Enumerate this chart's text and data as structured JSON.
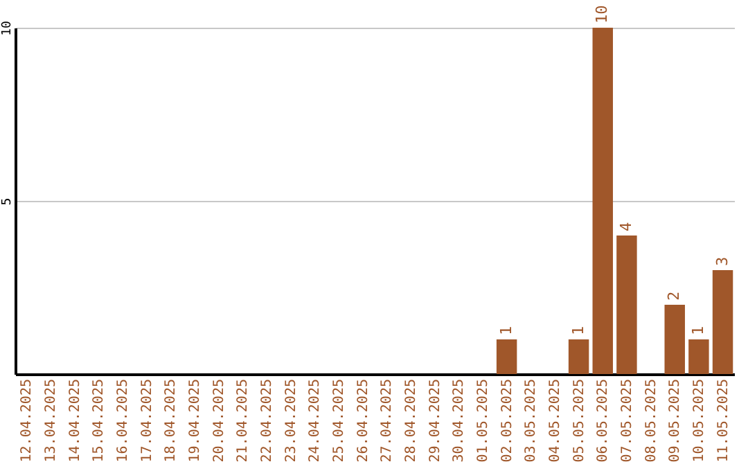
{
  "chart_data": {
    "type": "bar",
    "categories": [
      "12.04.2025",
      "13.04.2025",
      "14.04.2025",
      "15.04.2025",
      "16.04.2025",
      "17.04.2025",
      "18.04.2025",
      "19.04.2025",
      "20.04.2025",
      "21.04.2025",
      "22.04.2025",
      "23.04.2025",
      "24.04.2025",
      "25.04.2025",
      "26.04.2025",
      "27.04.2025",
      "28.04.2025",
      "29.04.2025",
      "30.04.2025",
      "01.05.2025",
      "02.05.2025",
      "03.05.2025",
      "04.05.2025",
      "05.05.2025",
      "06.05.2025",
      "07.05.2025",
      "08.05.2025",
      "09.05.2025",
      "10.05.2025",
      "11.05.2025"
    ],
    "values": [
      0,
      0,
      0,
      0,
      0,
      0,
      0,
      0,
      0,
      0,
      0,
      0,
      0,
      0,
      0,
      0,
      0,
      0,
      0,
      0,
      1,
      0,
      0,
      1,
      10,
      4,
      0,
      2,
      1,
      3
    ],
    "value_labels": [
      null,
      null,
      null,
      null,
      null,
      null,
      null,
      null,
      null,
      null,
      null,
      null,
      null,
      null,
      null,
      null,
      null,
      null,
      null,
      null,
      "1",
      null,
      null,
      "1",
      "10",
      "4",
      null,
      "2",
      "1",
      "3"
    ],
    "color": "#a0572a",
    "ylim": [
      0,
      10
    ],
    "yticks": [
      5,
      10
    ],
    "grid": "y"
  }
}
